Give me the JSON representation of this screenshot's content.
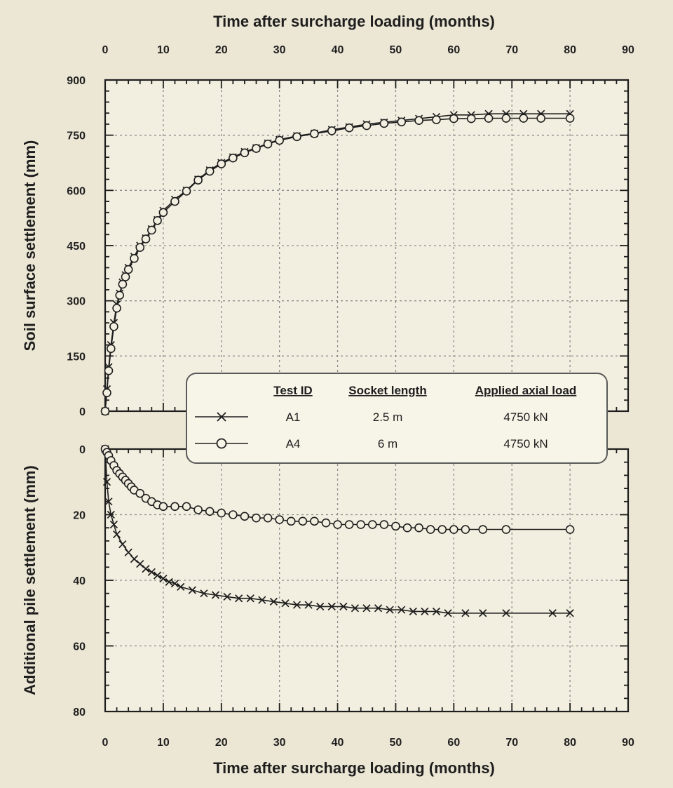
{
  "chart_data": [
    {
      "type": "scatter",
      "panel": "top",
      "title": "",
      "xlabel": "Time after surcharge loading (months)",
      "ylabel": "Soil surface settlement (mm)",
      "xlim": [
        0,
        90
      ],
      "ylim": [
        0,
        900
      ],
      "xticks": [
        0,
        10,
        20,
        30,
        40,
        50,
        60,
        70,
        80,
        90
      ],
      "yticks": [
        0,
        150,
        300,
        450,
        600,
        750,
        900
      ],
      "y_inverted": false,
      "grid": true,
      "legend_position": "bottom-right",
      "series": [
        {
          "name": "A1",
          "marker": "x",
          "x": [
            0,
            0.3,
            0.6,
            1,
            1.5,
            2,
            2.5,
            3,
            3.5,
            4,
            5,
            6,
            7,
            8,
            9,
            10,
            12,
            14,
            16,
            18,
            20,
            22,
            24,
            26,
            28,
            30,
            33,
            36,
            39,
            42,
            45,
            48,
            51,
            54,
            57,
            60,
            63,
            66,
            69,
            72,
            75,
            80
          ],
          "y": [
            0,
            60,
            120,
            180,
            240,
            290,
            320,
            350,
            370,
            390,
            420,
            450,
            470,
            495,
            520,
            545,
            575,
            600,
            630,
            655,
            675,
            690,
            705,
            715,
            728,
            738,
            748,
            755,
            765,
            772,
            780,
            785,
            790,
            795,
            800,
            805,
            805,
            808,
            808,
            808,
            808,
            808
          ]
        },
        {
          "name": "A4",
          "marker": "o",
          "x": [
            0,
            0.3,
            0.6,
            1,
            1.5,
            2,
            2.5,
            3,
            3.5,
            4,
            5,
            6,
            7,
            8,
            9,
            10,
            12,
            14,
            16,
            18,
            20,
            22,
            24,
            26,
            28,
            30,
            33,
            36,
            39,
            42,
            45,
            48,
            51,
            54,
            57,
            60,
            63,
            66,
            69,
            72,
            75,
            80
          ],
          "y": [
            0,
            50,
            110,
            170,
            230,
            280,
            315,
            345,
            365,
            385,
            415,
            445,
            468,
            492,
            518,
            540,
            570,
            598,
            628,
            652,
            672,
            688,
            702,
            714,
            726,
            736,
            746,
            754,
            762,
            770,
            776,
            782,
            786,
            790,
            792,
            795,
            795,
            796,
            796,
            796,
            796,
            796
          ]
        }
      ]
    },
    {
      "type": "scatter",
      "panel": "bottom",
      "title": "",
      "xlabel": "Time after surcharge loading (months)",
      "ylabel": "Additional pile settlement (mm)",
      "xlim": [
        0,
        90
      ],
      "ylim": [
        0,
        80
      ],
      "xticks": [
        0,
        10,
        20,
        30,
        40,
        50,
        60,
        70,
        80,
        90
      ],
      "yticks": [
        0,
        20,
        40,
        60,
        80
      ],
      "y_inverted": true,
      "grid": true,
      "series": [
        {
          "name": "A1",
          "marker": "x",
          "x": [
            0,
            0.3,
            0.6,
            1,
            1.5,
            2,
            3,
            4,
            5,
            6,
            7,
            8,
            9,
            10,
            11,
            12,
            13,
            15,
            17,
            19,
            21,
            23,
            25,
            27,
            29,
            31,
            33,
            35,
            37,
            39,
            41,
            43,
            45,
            47,
            49,
            51,
            53,
            55,
            57,
            59,
            62,
            65,
            69,
            77,
            80
          ],
          "y": [
            0,
            10,
            16,
            20,
            23,
            26,
            29,
            31.5,
            33.5,
            35,
            36.5,
            37.5,
            38.5,
            39.5,
            40.5,
            41,
            42,
            43,
            44,
            44.5,
            45,
            45.5,
            45.5,
            46,
            46.5,
            47,
            47.5,
            47.5,
            48,
            48,
            48,
            48.5,
            48.5,
            48.5,
            49,
            49,
            49.5,
            49.5,
            49.5,
            50,
            50,
            50,
            50,
            50,
            50
          ]
        },
        {
          "name": "A4",
          "marker": "o",
          "x": [
            0,
            0.3,
            0.6,
            1,
            1.5,
            2,
            2.5,
            3,
            3.5,
            4,
            4.5,
            5,
            6,
            7,
            8,
            9,
            10,
            12,
            14,
            16,
            18,
            20,
            22,
            24,
            26,
            28,
            30,
            32,
            34,
            36,
            38,
            40,
            42,
            44,
            46,
            48,
            50,
            52,
            54,
            56,
            58,
            60,
            62,
            65,
            69,
            80
          ],
          "y": [
            0,
            1,
            2,
            3.5,
            5,
            6.5,
            7.5,
            8.5,
            9.5,
            10.5,
            11.5,
            12.5,
            13.5,
            15,
            16,
            17,
            17.5,
            17.5,
            17.5,
            18.5,
            19,
            19.5,
            20,
            20.5,
            21,
            21,
            21.5,
            22,
            22,
            22,
            22.5,
            23,
            23,
            23,
            23,
            23,
            23.5,
            24,
            24,
            24.5,
            24.5,
            24.5,
            24.5,
            24.5,
            24.5,
            24.5
          ]
        }
      ]
    }
  ],
  "legend": {
    "headers": [
      "Test ID",
      "Socket length",
      "Applied axial load"
    ],
    "rows": [
      {
        "id": "A1",
        "socket": "2.5 m",
        "load": "4750 kN",
        "marker": "x"
      },
      {
        "id": "A4",
        "socket": "6 m",
        "load": "4750 kN",
        "marker": "o"
      }
    ]
  },
  "colors": {
    "background": "#ece7d4",
    "plot_background": "#f3efe0",
    "ink": "#1e1e1e",
    "grid": "#8a8a8a"
  }
}
